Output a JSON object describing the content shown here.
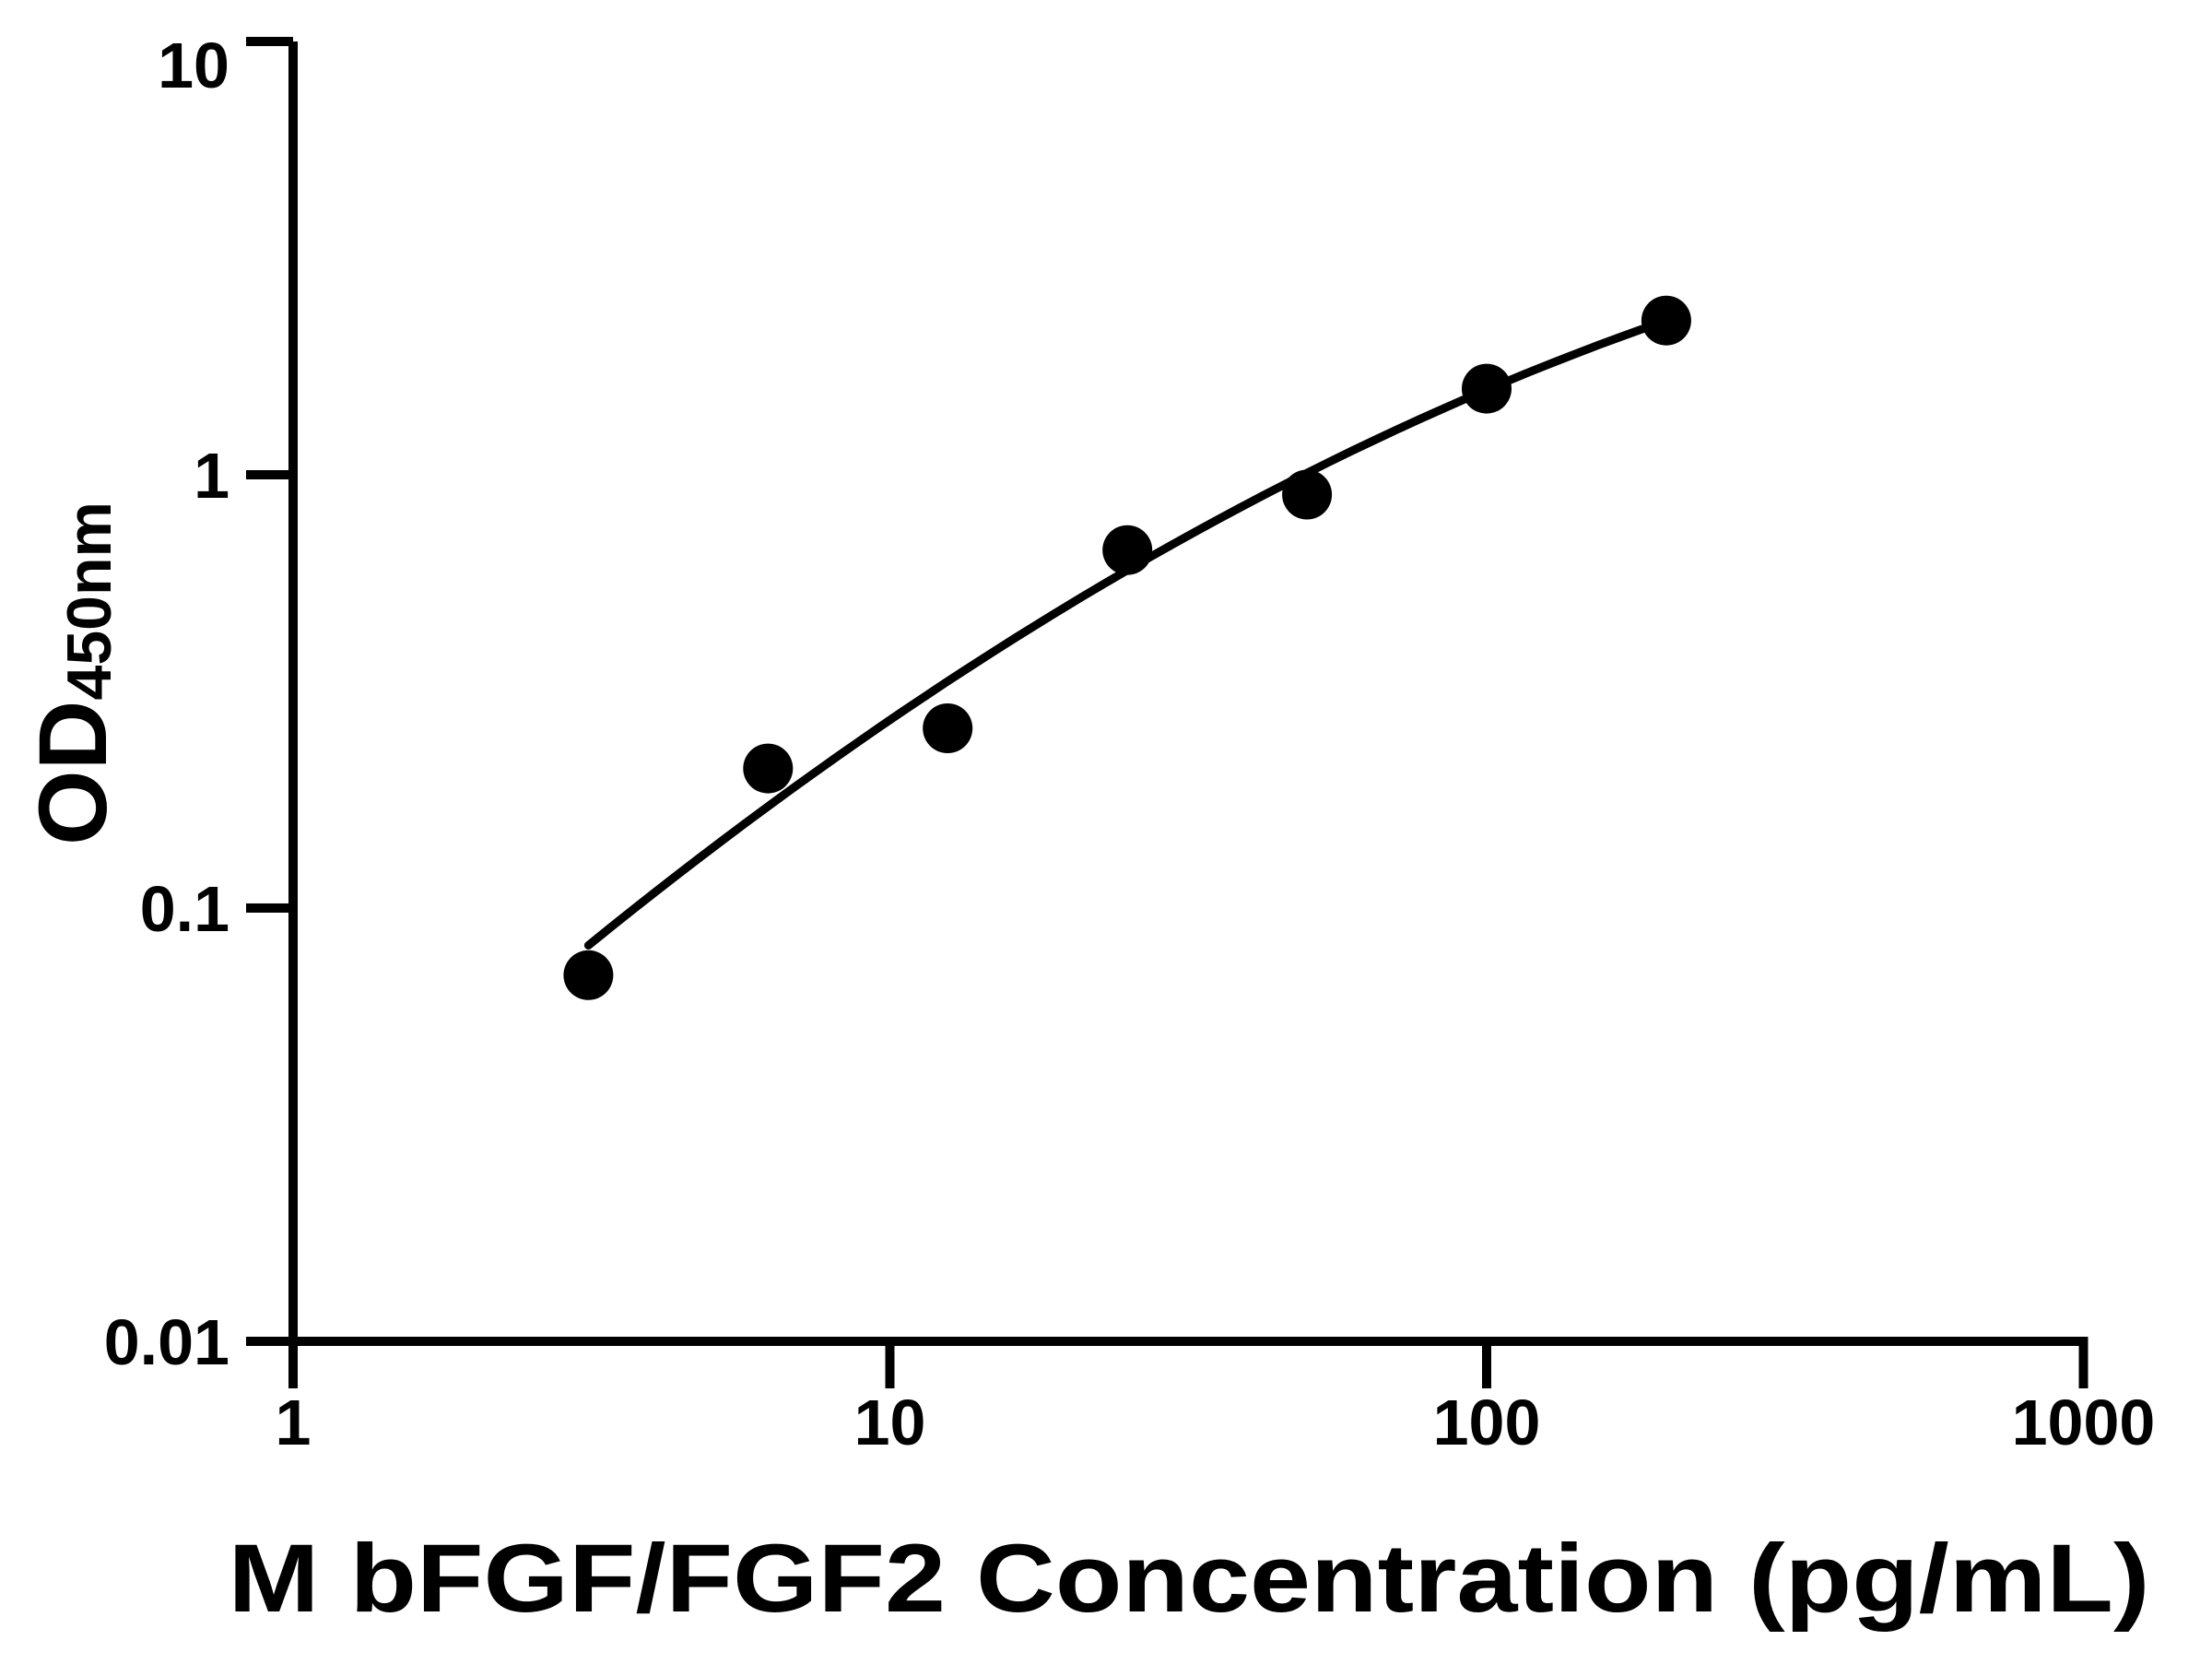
{
  "figure": {
    "kind": "elisa-standard-curve-plot",
    "background_color": "#ffffff",
    "foreground_color": "#000000"
  },
  "axes": {
    "x": {
      "label": "M bFGF/FGF2 Concentration (pg/mL)",
      "scale": "log",
      "min": 1,
      "max": 1000,
      "ticks": [
        {
          "value": 1,
          "label": "1"
        },
        {
          "value": 10,
          "label": "10"
        },
        {
          "value": 100,
          "label": "100"
        },
        {
          "value": 1000,
          "label": "1000"
        }
      ]
    },
    "y": {
      "label_main": "OD",
      "label_sub": "450nm",
      "scale": "log",
      "min": 0.01,
      "max": 10,
      "ticks": [
        {
          "value": 10,
          "label": "10"
        },
        {
          "value": 1,
          "label": "1"
        },
        {
          "value": 0.1,
          "label": "0.1"
        },
        {
          "value": 0.01,
          "label": "0.01"
        }
      ]
    }
  },
  "chart_data": {
    "type": "scatter",
    "title": "",
    "xlabel": "M bFGF/FGF2 Concentration (pg/mL)",
    "ylabel": "OD450nm",
    "xlim": [
      1,
      1000
    ],
    "ylim": [
      0.01,
      10
    ],
    "xscale": "log",
    "yscale": "log",
    "grid": false,
    "legend": false,
    "marker_color": "#000000",
    "line_color": "#000000",
    "series": [
      {
        "name": "standard-curve-points",
        "marker": "filled-circle",
        "x": [
          3.125,
          6.25,
          12.5,
          25,
          50,
          100,
          200
        ],
        "y": [
          0.07,
          0.21,
          0.26,
          0.67,
          0.9,
          1.58,
          2.27
        ]
      }
    ],
    "trendline": {
      "type": "log10-quadratic-fit",
      "x_start": 3.125,
      "x_end": 200,
      "coeffs_log10": [
        -1.6835,
        1.295,
        -0.1776
      ]
    }
  }
}
